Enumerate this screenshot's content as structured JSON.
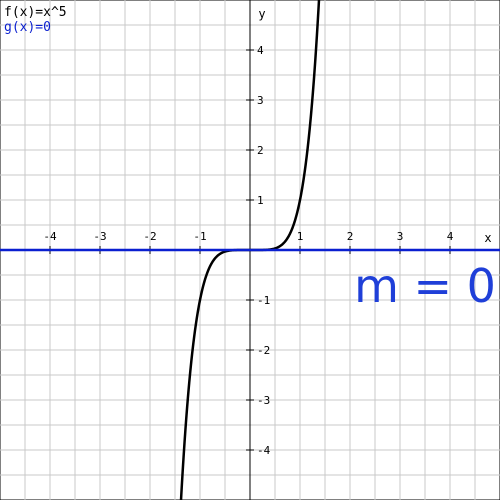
{
  "chart_data": {
    "type": "line",
    "xlim": [
      -5,
      5
    ],
    "ylim": [
      -5,
      5
    ],
    "grid": true,
    "xlabel": "x",
    "ylabel": "y",
    "x_ticks": [
      "-4",
      "-3",
      "-2",
      "-1",
      "1",
      "2",
      "3",
      "4"
    ],
    "y_ticks": [
      "4",
      "3",
      "2",
      "1",
      "-1",
      "-2",
      "-3",
      "-4"
    ],
    "x_tick_values": [
      -4,
      -3,
      -2,
      -1,
      1,
      2,
      3,
      4
    ],
    "y_tick_values": [
      4,
      3,
      2,
      1,
      -1,
      -2,
      -3,
      -4
    ],
    "series": [
      {
        "name": "f(x)=x^5",
        "color": "#000000",
        "x": [
          -1.38,
          -1.3,
          -1.2,
          -1.1,
          -1.0,
          -0.9,
          -0.8,
          -0.7,
          -0.6,
          -0.5,
          -0.4,
          -0.3,
          -0.2,
          -0.1,
          0.0,
          0.1,
          0.2,
          0.3,
          0.4,
          0.5,
          0.6,
          0.7,
          0.8,
          0.9,
          1.0,
          1.1,
          1.2,
          1.3,
          1.38
        ],
        "y": [
          -5.0,
          -3.71,
          -2.49,
          -1.61,
          -1.0,
          -0.59,
          -0.33,
          -0.17,
          -0.08,
          -0.03,
          -0.01,
          0.0,
          0.0,
          0.0,
          0.0,
          0.0,
          0.0,
          0.0,
          0.01,
          0.03,
          0.08,
          0.17,
          0.33,
          0.59,
          1.0,
          1.61,
          2.49,
          3.71,
          5.0
        ]
      },
      {
        "name": "g(x)=0",
        "color": "#0a1fd0",
        "x": [
          -5,
          5
        ],
        "y": [
          0,
          0
        ]
      }
    ],
    "annotations": [
      {
        "text": "m = 0",
        "x": 3.5,
        "y": -0.8,
        "color": "#1f3fd8"
      }
    ]
  },
  "legend": [
    {
      "label": "f(x)=x^5",
      "color": "#000000"
    },
    {
      "label": "g(x)=0",
      "color": "#0a1fd0"
    }
  ]
}
